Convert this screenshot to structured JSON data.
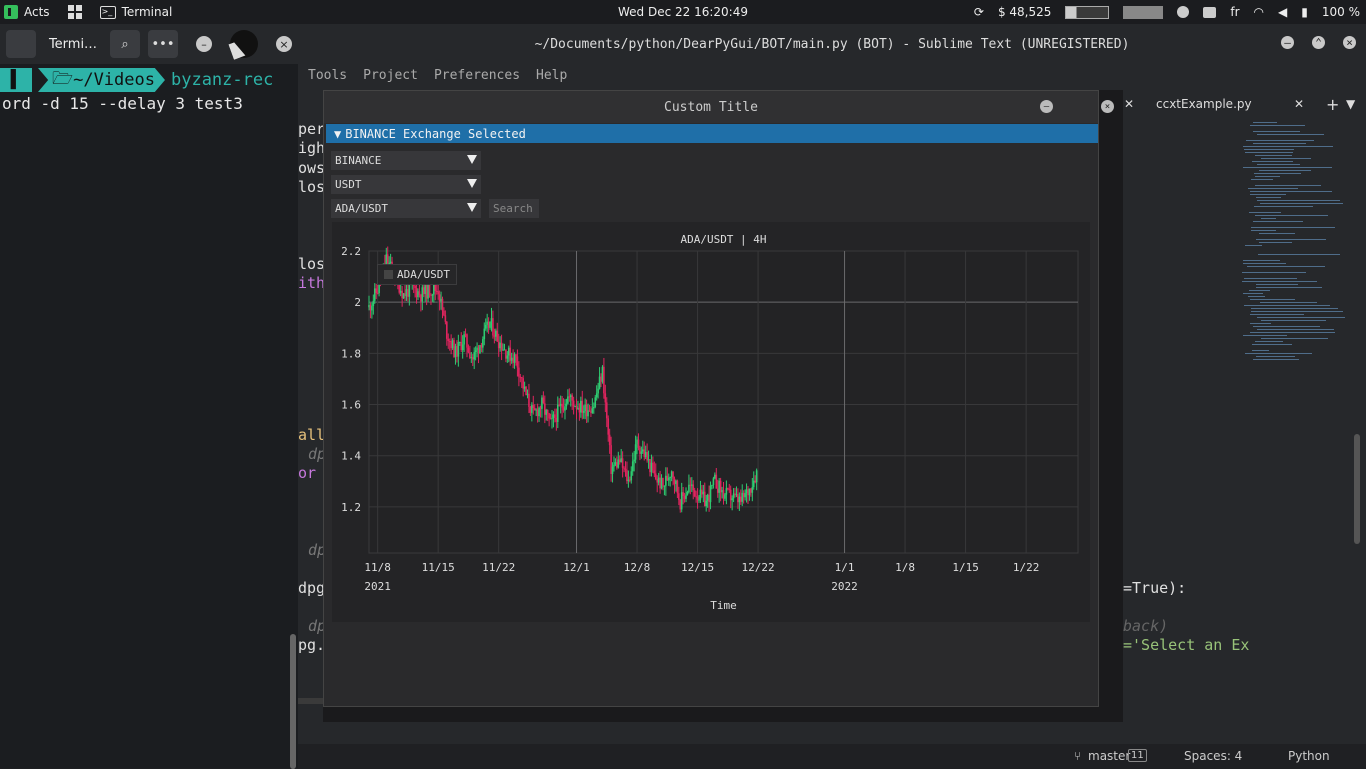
{
  "topbar": {
    "activities": "Acts",
    "terminal_app": "Terminal",
    "clock": "Wed Dec 22  16:20:49",
    "price": "$ 48,525",
    "lang": "fr",
    "battery": "100 %"
  },
  "terminal": {
    "title": "Termi…",
    "prompt_path": "~/Videos",
    "prompt_cmd": "byzanz-rec",
    "line2": "ord -d 15 --delay 3 test3"
  },
  "sublime": {
    "title": "~/Documents/python/DearPyGui/BOT/main.py (BOT) - Sublime Text (UNREGISTERED)",
    "menu": [
      "Tools",
      "Project",
      "Preferences",
      "Help"
    ],
    "tab_label": "ccxtExample.py",
    "code_fragments": [
      {
        "text": "per",
        "color": "#e0e0e0"
      },
      {
        "text": "igh",
        "color": "#e0e0e0"
      },
      {
        "text": "ows",
        "color": "#e0e0e0"
      },
      {
        "text": "los",
        "color": "#e0e0e0"
      },
      {
        "text": "los",
        "color": "#e0e0e0"
      },
      {
        "text": "ith",
        "color": "#c678dd"
      },
      {
        "text": "all",
        "color": "#e5c07b"
      },
      {
        "text": "dp",
        "color": "#777"
      },
      {
        "text": "or",
        "color": "#c678dd"
      },
      {
        "text": "dp",
        "color": "#777"
      },
      {
        "text": "dpg",
        "color": "#e0e0e0"
      },
      {
        "text": "dp",
        "color": "#777"
      },
      {
        "text": "pg.",
        "color": "#e0e0e0"
      }
    ],
    "code_right": [
      {
        "text": "=True):",
        "color": "#e0e0e0"
      },
      {
        "text": "back)",
        "color": "#666"
      },
      {
        "text": "='Select an Ex",
        "color": "#98c379"
      }
    ],
    "status": {
      "branch": "master",
      "branch_count": "11",
      "spaces": "Spaces: 4",
      "syntax": "Python"
    }
  },
  "dialog": {
    "title": "Custom Title",
    "header": "BINANCE Exchange Selected",
    "exchange": "BINANCE",
    "quote": "USDT",
    "pair": "ADA/USDT",
    "search_placeholder": "Search"
  },
  "chart_data": {
    "type": "candlestick",
    "title": "ADA/USDT | 4H",
    "xlabel": "Time",
    "legend": "ADA/USDT",
    "legend_position": "top-left",
    "ylim": [
      1.02,
      2.2
    ],
    "yticks": [
      1.2,
      1.4,
      1.6,
      1.8,
      2,
      2.2
    ],
    "xlim": [
      "2021-11-07",
      "2022-01-28"
    ],
    "xticks": [
      {
        "label": "11/8",
        "date": "2021-11-08"
      },
      {
        "label": "11/15",
        "date": "2021-11-15"
      },
      {
        "label": "11/22",
        "date": "2021-11-22"
      },
      {
        "label": "12/1",
        "date": "2021-12-01"
      },
      {
        "label": "12/8",
        "date": "2021-12-08"
      },
      {
        "label": "12/15",
        "date": "2021-12-15"
      },
      {
        "label": "12/22",
        "date": "2021-12-22"
      },
      {
        "label": "1/1",
        "date": "2022-01-01"
      },
      {
        "label": "1/8",
        "date": "2022-01-08"
      },
      {
        "label": "1/15",
        "date": "2022-01-15"
      },
      {
        "label": "1/22",
        "date": "2022-01-22"
      }
    ],
    "year_labels": [
      {
        "label": "2021",
        "date": "2021-11-08"
      },
      {
        "label": "2022",
        "date": "2022-01-01"
      }
    ],
    "up_color": "#2ecc71",
    "down_color": "#e0245e",
    "series": [
      {
        "date": "2021-11-07",
        "close": 1.98
      },
      {
        "date": "2021-11-08",
        "close": 2.05
      },
      {
        "date": "2021-11-09",
        "close": 2.17
      },
      {
        "date": "2021-11-10",
        "close": 2.1
      },
      {
        "date": "2021-11-11",
        "close": 2.03
      },
      {
        "date": "2021-11-12",
        "close": 2.06
      },
      {
        "date": "2021-11-13",
        "close": 2.03
      },
      {
        "date": "2021-11-14",
        "close": 2.05
      },
      {
        "date": "2021-11-15",
        "close": 2.05
      },
      {
        "date": "2021-11-16",
        "close": 1.88
      },
      {
        "date": "2021-11-17",
        "close": 1.8
      },
      {
        "date": "2021-11-18",
        "close": 1.86
      },
      {
        "date": "2021-11-19",
        "close": 1.78
      },
      {
        "date": "2021-11-20",
        "close": 1.85
      },
      {
        "date": "2021-11-21",
        "close": 1.92
      },
      {
        "date": "2021-11-22",
        "close": 1.85
      },
      {
        "date": "2021-11-23",
        "close": 1.8
      },
      {
        "date": "2021-11-24",
        "close": 1.78
      },
      {
        "date": "2021-11-25",
        "close": 1.65
      },
      {
        "date": "2021-11-26",
        "close": 1.56
      },
      {
        "date": "2021-11-27",
        "close": 1.6
      },
      {
        "date": "2021-11-28",
        "close": 1.52
      },
      {
        "date": "2021-11-29",
        "close": 1.58
      },
      {
        "date": "2021-11-30",
        "close": 1.63
      },
      {
        "date": "2021-12-01",
        "close": 1.6
      },
      {
        "date": "2021-12-02",
        "close": 1.58
      },
      {
        "date": "2021-12-03",
        "close": 1.6
      },
      {
        "date": "2021-12-04",
        "close": 1.73
      },
      {
        "date": "2021-12-05",
        "close": 1.35
      },
      {
        "date": "2021-12-06",
        "close": 1.38
      },
      {
        "date": "2021-12-07",
        "close": 1.3
      },
      {
        "date": "2021-12-08",
        "close": 1.45
      },
      {
        "date": "2021-12-09",
        "close": 1.4
      },
      {
        "date": "2021-12-10",
        "close": 1.32
      },
      {
        "date": "2021-12-11",
        "close": 1.28
      },
      {
        "date": "2021-12-12",
        "close": 1.35
      },
      {
        "date": "2021-12-13",
        "close": 1.22
      },
      {
        "date": "2021-12-14",
        "close": 1.28
      },
      {
        "date": "2021-12-15",
        "close": 1.25
      },
      {
        "date": "2021-12-16",
        "close": 1.22
      },
      {
        "date": "2021-12-17",
        "close": 1.3
      },
      {
        "date": "2021-12-18",
        "close": 1.25
      },
      {
        "date": "2021-12-19",
        "close": 1.24
      },
      {
        "date": "2021-12-20",
        "close": 1.22
      },
      {
        "date": "2021-12-21",
        "close": 1.27
      },
      {
        "date": "2021-12-22",
        "close": 1.35
      }
    ]
  }
}
